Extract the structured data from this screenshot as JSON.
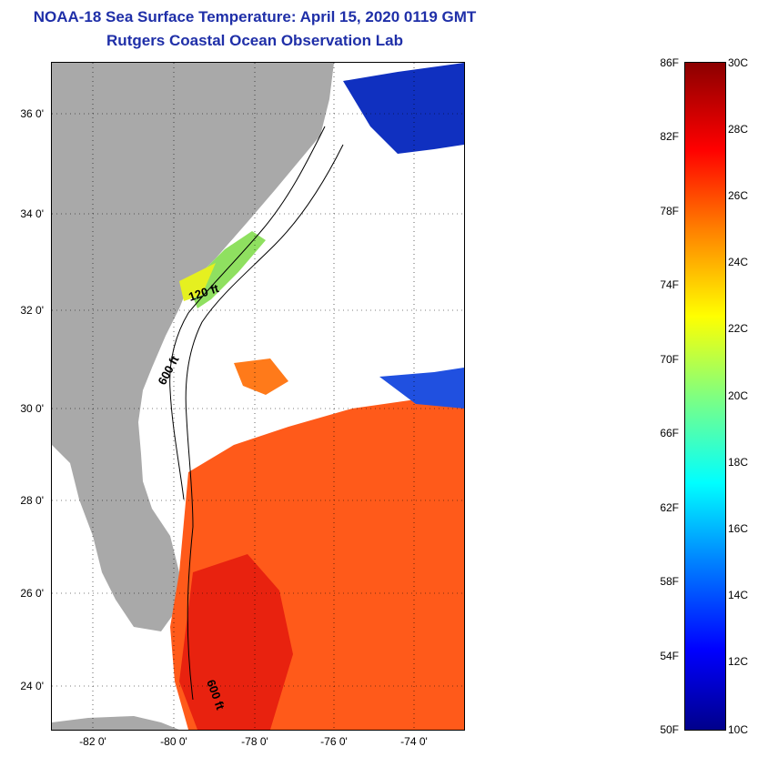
{
  "title": {
    "line1": "NOAA-18 Sea Surface Temperature:  April 15, 2020 0119 GMT",
    "line2": "Rutgers Coastal Ocean Observation Lab"
  },
  "axes": {
    "lat_labels": [
      "36 0'",
      "34 0'",
      "32 0'",
      "30 0'",
      "28 0'",
      "26 0'",
      "24 0'"
    ],
    "lon_labels": [
      "-82 0'",
      "-80 0'",
      "-78 0'",
      "-76 0'",
      "-74 0'"
    ]
  },
  "contours": {
    "label_120": "120 ft",
    "label_600a": "600 ft",
    "label_600b": "600 ft"
  },
  "colorbar": {
    "f_labels": [
      "86F",
      "82F",
      "78F",
      "74F",
      "70F",
      "66F",
      "62F",
      "58F",
      "54F",
      "50F"
    ],
    "c_labels": [
      "30C",
      "28C",
      "26C",
      "24C",
      "22C",
      "20C",
      "18C",
      "16C",
      "14C",
      "12C",
      "10C"
    ]
  },
  "colors": {
    "land": "#a9a9a9",
    "warm": "#ff5a1a",
    "title": "#1f2fa8"
  }
}
